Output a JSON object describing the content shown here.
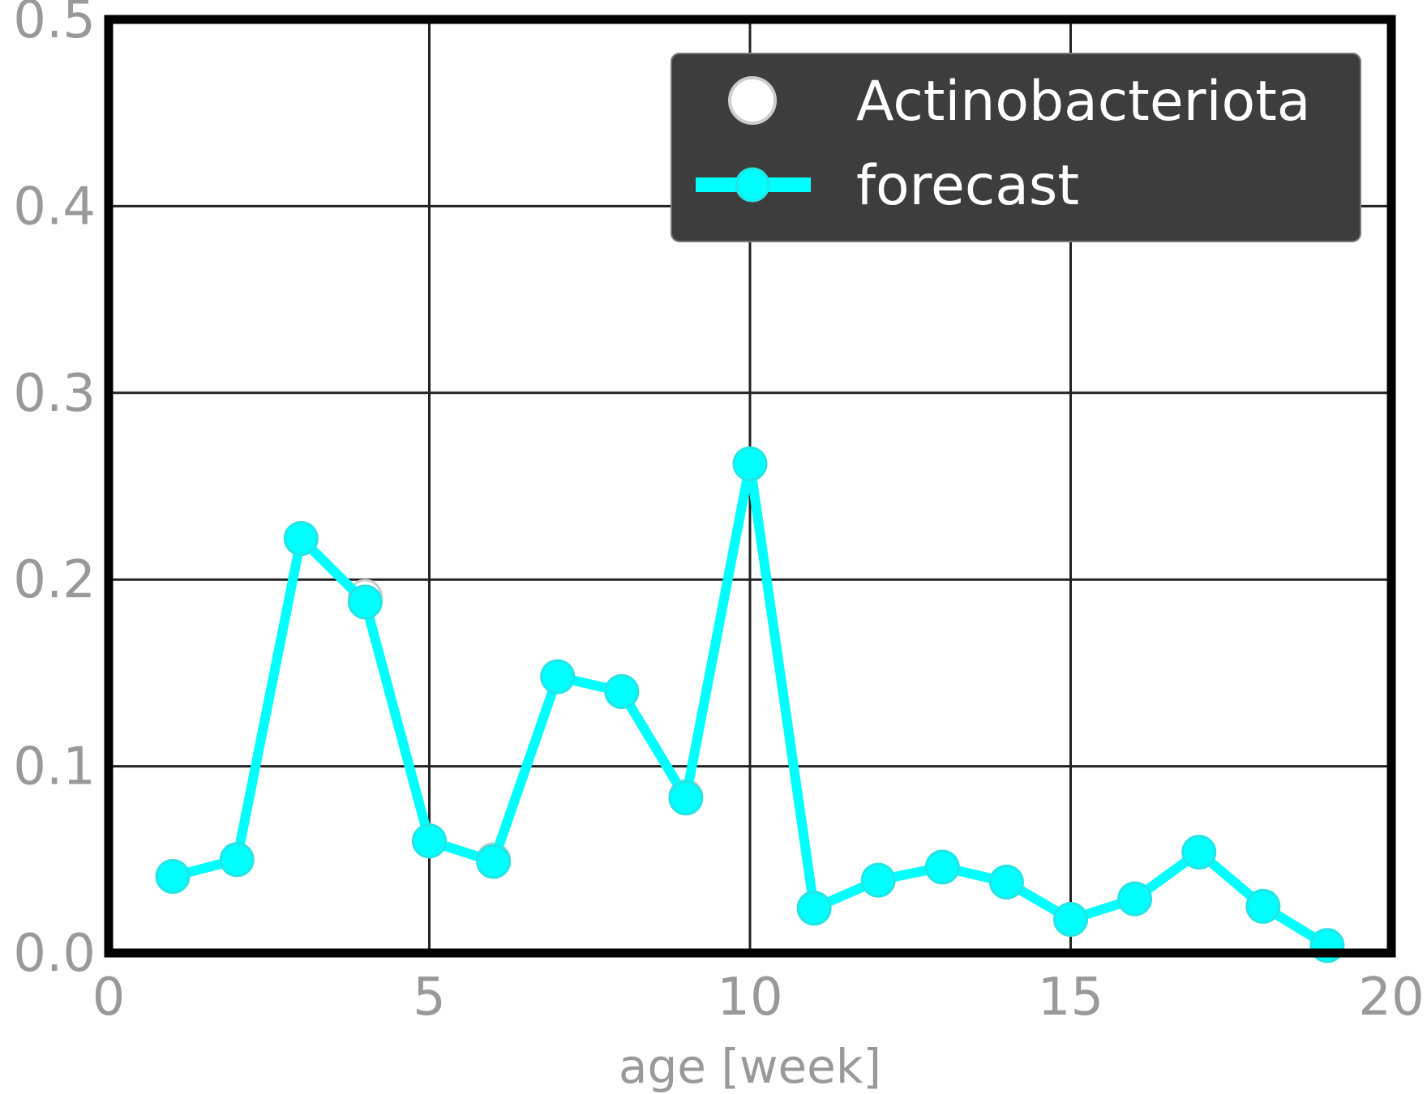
{
  "chart_data": {
    "type": "line",
    "xlabel": "age [week]",
    "ylabel": "",
    "xlim": [
      0,
      20
    ],
    "ylim": [
      0,
      0.5
    ],
    "xticks": [
      "0",
      "5",
      "10",
      "15",
      "20"
    ],
    "yticks": [
      "0.0",
      "0.1",
      "0.2",
      "0.3",
      "0.4",
      "0.5"
    ],
    "grid": true,
    "legend_position": "top-right",
    "series": [
      {
        "name": "Actinobacteriota",
        "style": "markers",
        "color": "#ffffff",
        "x": [
          1,
          2,
          3,
          4,
          5,
          6,
          7,
          8,
          9,
          10,
          11,
          12,
          13,
          14,
          15,
          16,
          17,
          18,
          19
        ],
        "y": [
          0.041,
          0.05,
          0.222,
          0.191,
          0.06,
          0.05,
          0.148,
          0.14,
          0.084,
          0.262,
          0.024,
          0.039,
          0.046,
          0.038,
          0.018,
          0.029,
          0.054,
          0.025,
          0.004
        ]
      },
      {
        "name": "forecast",
        "style": "line-markers",
        "color": "#00ffff",
        "x": [
          1,
          2,
          3,
          4,
          5,
          6,
          7,
          8,
          9,
          10,
          11,
          12,
          13,
          14,
          15,
          16,
          17,
          18,
          19
        ],
        "y": [
          0.041,
          0.05,
          0.222,
          0.188,
          0.06,
          0.049,
          0.148,
          0.14,
          0.083,
          0.262,
          0.024,
          0.039,
          0.046,
          0.038,
          0.018,
          0.029,
          0.054,
          0.025,
          0.004
        ]
      }
    ],
    "colors": {
      "grid": "#222222",
      "frame": "#000000",
      "tick_text": "#999999",
      "legend_bg": "#3d3d3d",
      "legend_text": "#ffffff"
    }
  }
}
